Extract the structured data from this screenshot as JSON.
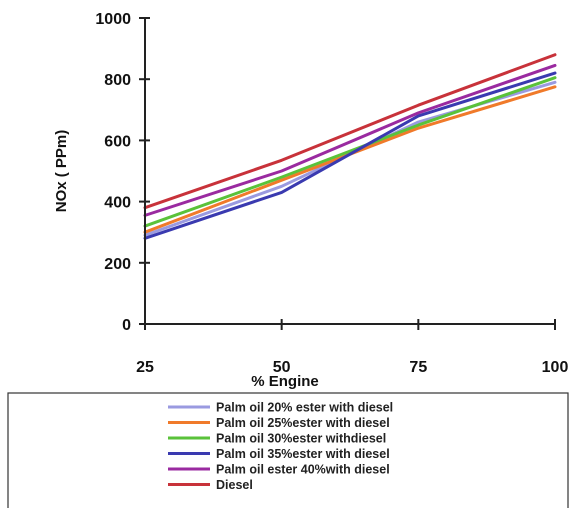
{
  "chart_data": {
    "type": "line",
    "title": "",
    "xlabel": "% Engine",
    "ylabel": "NOx ( PPm)",
    "x": [
      25,
      50,
      75,
      100
    ],
    "x_tick_labels": [
      "25",
      "50",
      "75",
      "100"
    ],
    "ylim": [
      0,
      1000
    ],
    "y_ticks": [
      0,
      200,
      400,
      600,
      800,
      1000
    ],
    "y_tick_labels": [
      "0",
      "200",
      "400",
      "600",
      "800",
      "1000"
    ],
    "grid": false,
    "legend_position": "bottom",
    "series": [
      {
        "name": "Palm oil 20% ester with  diesel",
        "color": "#9a9ae0",
        "values": [
          290,
          450,
          660,
          790
        ]
      },
      {
        "name": "Palm oil 25%ester with  diesel",
        "color": "#f07a2a",
        "values": [
          300,
          470,
          640,
          775
        ]
      },
      {
        "name": "Palm oil  30%ester withdiesel",
        "color": "#5ac23a",
        "values": [
          320,
          480,
          650,
          805
        ]
      },
      {
        "name": "Palm oil 35%ester with  diesel",
        "color": "#3a3ab0",
        "values": [
          280,
          430,
          680,
          820
        ]
      },
      {
        "name": "Palm oil ester 40%with  diesel",
        "color": "#9a2aa0",
        "values": [
          355,
          500,
          690,
          845
        ]
      },
      {
        "name": "Diesel",
        "color": "#c8323a",
        "values": [
          380,
          535,
          715,
          880
        ]
      }
    ]
  }
}
